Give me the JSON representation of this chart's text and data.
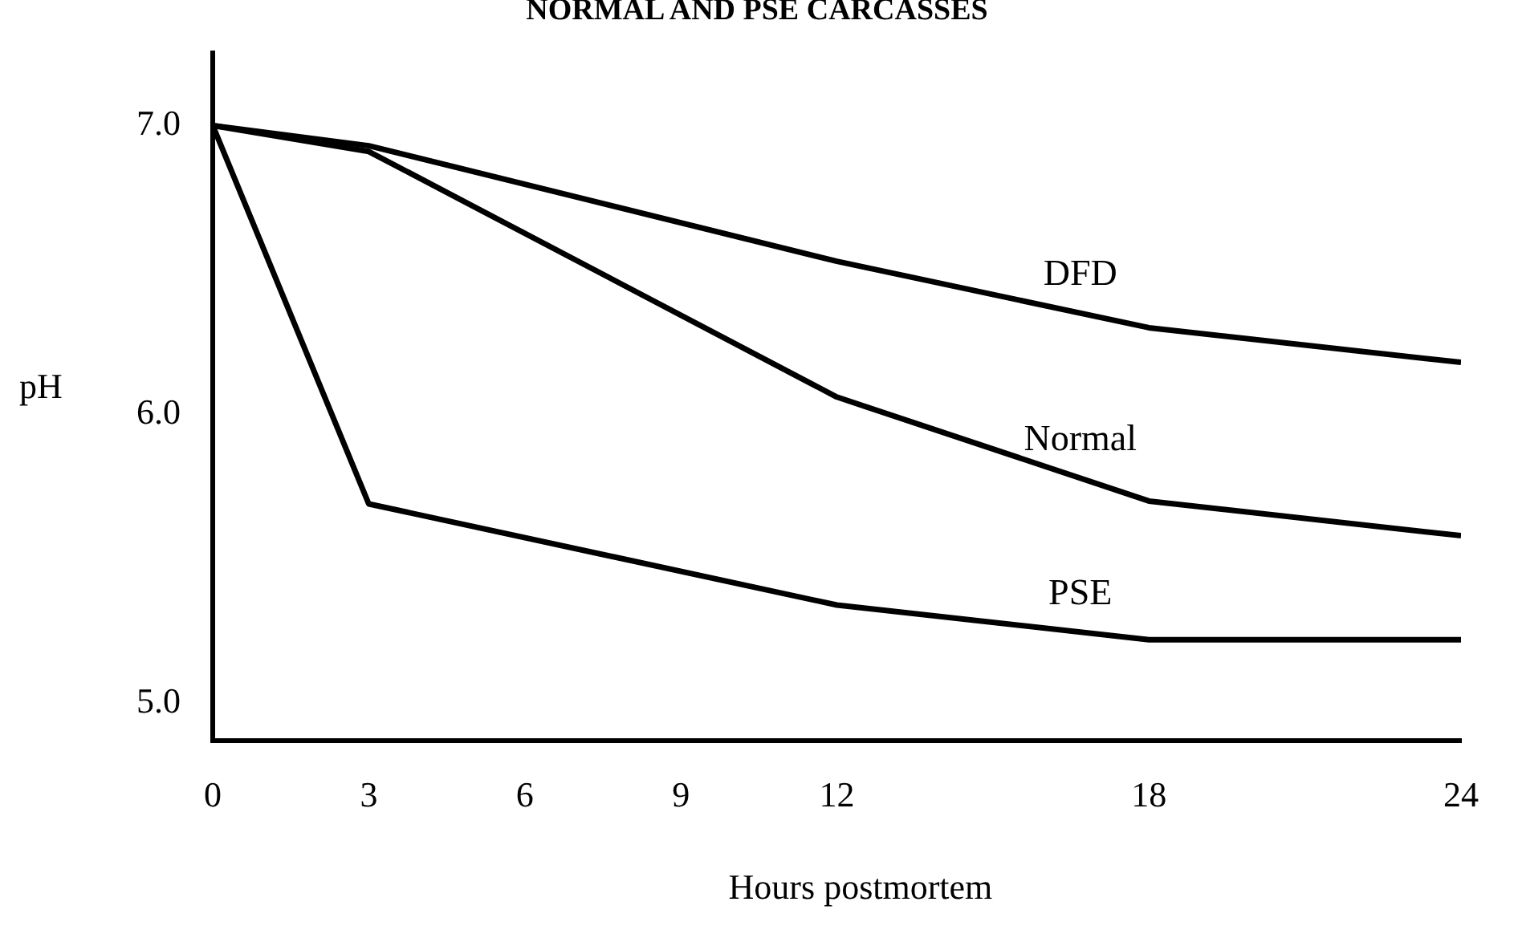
{
  "chart_data": {
    "type": "line",
    "title": "NORMAL AND PSE CARCASSES",
    "xlabel": "Hours postmortem",
    "ylabel": "pH",
    "xlim": [
      0,
      24
    ],
    "xticks": [
      0,
      3,
      6,
      9,
      12,
      18,
      24
    ],
    "ylim": [
      4.87,
      7.25
    ],
    "yticks": [
      {
        "value": 5,
        "label": "5.0"
      },
      {
        "value": 6,
        "label": "6.0"
      },
      {
        "value": 7,
        "label": "7.0"
      }
    ],
    "grid": false,
    "legend": false,
    "marker": "none",
    "line_style": "solid",
    "series": [
      {
        "name": "DFD",
        "color": "#000000",
        "x": [
          0,
          3,
          12,
          18,
          24
        ],
        "values": [
          7.0,
          6.93,
          6.53,
          6.3,
          6.18
        ]
      },
      {
        "name": "Normal",
        "color": "#000000",
        "x": [
          0,
          3,
          12,
          18,
          24
        ],
        "values": [
          7.0,
          6.91,
          6.06,
          5.7,
          5.58
        ]
      },
      {
        "name": "PSE",
        "color": "#000000",
        "x": [
          0,
          3,
          12,
          18,
          24
        ],
        "values": [
          7.0,
          5.69,
          5.34,
          5.22,
          5.22
        ]
      }
    ]
  }
}
